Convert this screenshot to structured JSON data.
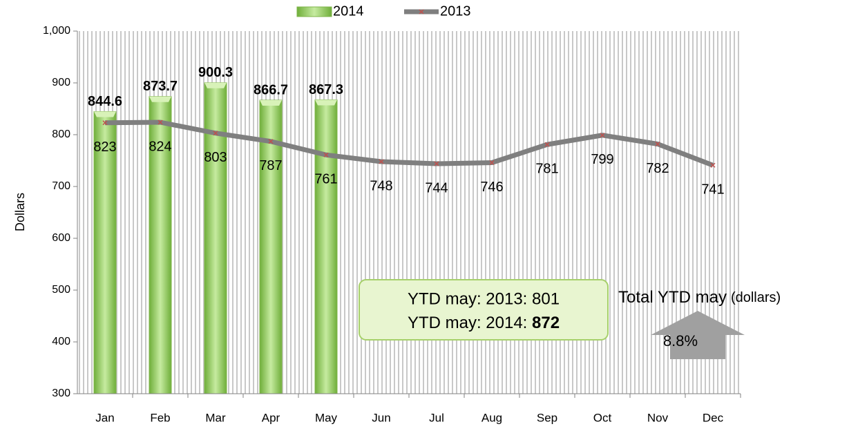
{
  "chart_data": {
    "type": "bar",
    "categories": [
      "Jan",
      "Feb",
      "Mar",
      "Apr",
      "May",
      "Jun",
      "Jul",
      "Aug",
      "Sep",
      "Oct",
      "Nov",
      "Dec"
    ],
    "series": [
      {
        "name": "2014",
        "type": "bar",
        "color": "#9bd16a",
        "values": [
          844.6,
          873.7,
          900.3,
          866.7,
          867.3,
          null,
          null,
          null,
          null,
          null,
          null,
          null
        ]
      },
      {
        "name": "2013",
        "type": "line",
        "color": "#7f7f7f",
        "marker_color": "#c0504d",
        "values": [
          823,
          824,
          803,
          787,
          761,
          748,
          744,
          746,
          781,
          799,
          782,
          741
        ]
      }
    ],
    "ylim": [
      300,
      1000
    ],
    "yticks": [
      300,
      400,
      500,
      600,
      700,
      800,
      900,
      {
        "value": 1000,
        "label": "1,000"
      }
    ],
    "y_label": "Dollars",
    "legend": "top",
    "annotation": {
      "line1": "YTD may: 2013: 801",
      "line2_text": "YTD may: 2014: ",
      "line2_bold": "872"
    },
    "arrow": {
      "title": "Total YTD may",
      "unit": "(dollars)",
      "label": "8.8%"
    }
  }
}
